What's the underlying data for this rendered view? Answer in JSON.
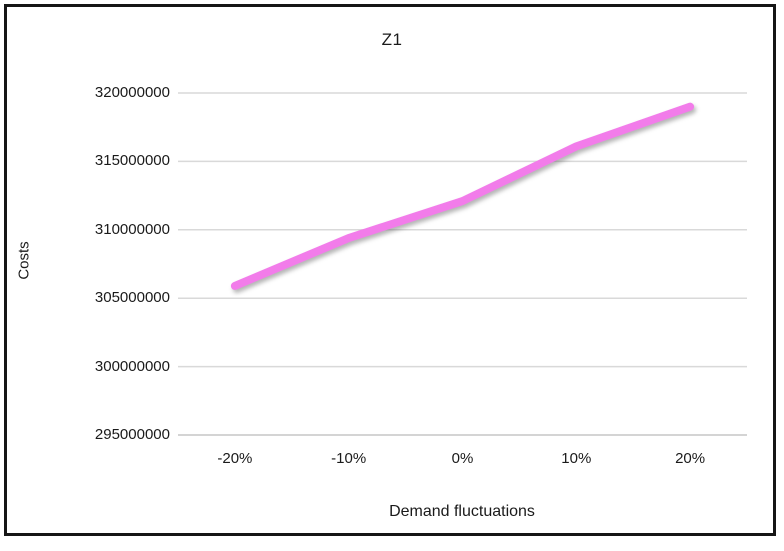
{
  "chart": {
    "title": "Z1",
    "xlabel": "Demand fluctuations",
    "ylabel": "Costs"
  },
  "colors": {
    "line": "#F27CEA",
    "gridline": "#D9D9D9",
    "axisline": "#C6C6C6",
    "text": "#1a1a1a",
    "frame_border": "#161616",
    "background": "#ffffff"
  },
  "chart_data": {
    "type": "line",
    "title": "Z1",
    "xlabel": "Demand fluctuations",
    "ylabel": "Costs",
    "categories": [
      "-20%",
      "-10%",
      "0%",
      "10%",
      "20%"
    ],
    "series": [
      {
        "name": "Z1",
        "color": "#F27CEA",
        "values": [
          305900000,
          309400000,
          312100000,
          316100000,
          319000000
        ]
      }
    ],
    "yticks": [
      320000000,
      315000000,
      310000000,
      305000000,
      300000000,
      295000000
    ],
    "ylim": [
      295000000,
      320000000
    ],
    "grid": true,
    "legend_position": "none"
  }
}
